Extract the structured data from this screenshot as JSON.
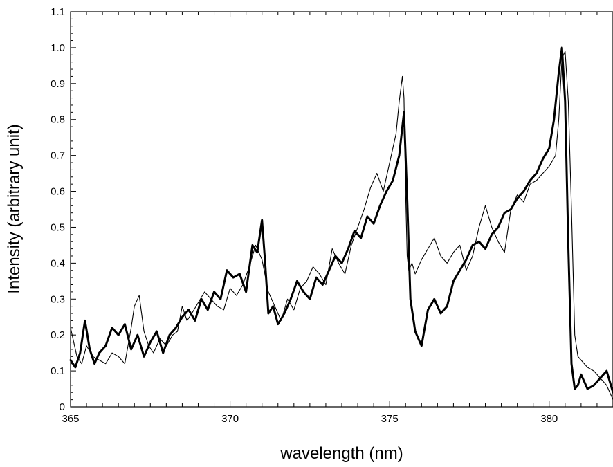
{
  "chart_data": {
    "type": "line",
    "title": "",
    "xlabel": "wavelength (nm)",
    "ylabel": "Intensity (arbitrary unit)",
    "xlim": [
      365,
      382
    ],
    "ylim": [
      0,
      1.1
    ],
    "x_ticks": [
      365,
      370,
      375,
      380
    ],
    "x_tick_labels": [
      "365",
      "370",
      "375",
      "380"
    ],
    "y_ticks": [
      0,
      0.1,
      0.2,
      0.3,
      0.4,
      0.5,
      0.6,
      0.7,
      0.8,
      0.9,
      1.0,
      1.1
    ],
    "y_tick_labels": [
      "0",
      "0.1",
      "0.2",
      "0.3",
      "0.4",
      "0.5",
      "0.6",
      "0.7",
      "0.8",
      "0.9",
      "1.0",
      "1.1"
    ],
    "grid": false,
    "legend": "none",
    "series": [
      {
        "style": "thin",
        "color": "#000000",
        "x": [
          365.0,
          365.1,
          365.2,
          365.35,
          365.5,
          365.7,
          365.9,
          366.1,
          366.3,
          366.5,
          366.7,
          366.9,
          367.0,
          367.15,
          367.3,
          367.45,
          367.6,
          367.8,
          368.0,
          368.2,
          368.35,
          368.5,
          368.65,
          368.8,
          369.0,
          369.2,
          369.4,
          369.6,
          369.8,
          370.0,
          370.2,
          370.4,
          370.6,
          370.8,
          371.0,
          371.2,
          371.4,
          371.6,
          371.8,
          372.0,
          372.2,
          372.4,
          372.6,
          372.8,
          373.0,
          373.2,
          373.4,
          373.6,
          373.8,
          374.0,
          374.2,
          374.4,
          374.6,
          374.8,
          375.0,
          375.2,
          375.3,
          375.4,
          375.45,
          375.5,
          375.55,
          375.6,
          375.7,
          375.8,
          376.0,
          376.2,
          376.4,
          376.6,
          376.8,
          377.0,
          377.2,
          377.4,
          377.6,
          377.8,
          378.0,
          378.2,
          378.4,
          378.6,
          378.8,
          379.0,
          379.2,
          379.4,
          379.6,
          379.8,
          380.0,
          380.2,
          380.3,
          380.4,
          380.5,
          380.6,
          380.7,
          380.8,
          380.9,
          381.0,
          381.2,
          381.4,
          381.6,
          381.8,
          382.0
        ],
        "y": [
          0.22,
          0.18,
          0.14,
          0.12,
          0.17,
          0.14,
          0.13,
          0.12,
          0.15,
          0.14,
          0.12,
          0.22,
          0.28,
          0.31,
          0.21,
          0.17,
          0.15,
          0.19,
          0.17,
          0.2,
          0.21,
          0.28,
          0.24,
          0.26,
          0.29,
          0.32,
          0.3,
          0.28,
          0.27,
          0.33,
          0.31,
          0.34,
          0.39,
          0.45,
          0.41,
          0.32,
          0.28,
          0.24,
          0.3,
          0.27,
          0.33,
          0.35,
          0.39,
          0.37,
          0.34,
          0.44,
          0.4,
          0.37,
          0.45,
          0.5,
          0.55,
          0.61,
          0.65,
          0.6,
          0.68,
          0.76,
          0.85,
          0.92,
          0.86,
          0.6,
          0.42,
          0.38,
          0.4,
          0.37,
          0.41,
          0.44,
          0.47,
          0.42,
          0.4,
          0.43,
          0.45,
          0.38,
          0.42,
          0.5,
          0.56,
          0.5,
          0.46,
          0.43,
          0.55,
          0.59,
          0.57,
          0.62,
          0.63,
          0.65,
          0.67,
          0.7,
          0.8,
          0.97,
          0.99,
          0.85,
          0.55,
          0.2,
          0.14,
          0.13,
          0.11,
          0.1,
          0.08,
          0.06,
          0.02
        ]
      },
      {
        "style": "thick",
        "color": "#000000",
        "x": [
          365.0,
          365.15,
          365.3,
          365.45,
          365.6,
          365.75,
          365.9,
          366.1,
          366.3,
          366.5,
          366.7,
          366.9,
          367.1,
          367.3,
          367.5,
          367.7,
          367.9,
          368.1,
          368.3,
          368.5,
          368.7,
          368.9,
          369.1,
          369.3,
          369.5,
          369.7,
          369.9,
          370.1,
          370.3,
          370.5,
          370.7,
          370.85,
          371.0,
          371.1,
          371.2,
          371.35,
          371.5,
          371.7,
          371.9,
          372.1,
          372.3,
          372.5,
          372.7,
          372.9,
          373.1,
          373.3,
          373.5,
          373.7,
          373.9,
          374.1,
          374.3,
          374.5,
          374.7,
          374.9,
          375.1,
          375.3,
          375.45,
          375.55,
          375.65,
          375.8,
          376.0,
          376.2,
          376.4,
          376.6,
          376.8,
          377.0,
          377.2,
          377.4,
          377.6,
          377.8,
          378.0,
          378.2,
          378.4,
          378.6,
          378.8,
          379.0,
          379.2,
          379.4,
          379.6,
          379.8,
          380.0,
          380.15,
          380.3,
          380.4,
          380.5,
          380.6,
          380.7,
          380.8,
          380.9,
          381.0,
          381.2,
          381.4,
          381.6,
          381.8,
          382.0
        ],
        "y": [
          0.13,
          0.11,
          0.15,
          0.24,
          0.16,
          0.12,
          0.15,
          0.17,
          0.22,
          0.2,
          0.23,
          0.16,
          0.2,
          0.14,
          0.18,
          0.21,
          0.15,
          0.2,
          0.22,
          0.25,
          0.27,
          0.24,
          0.3,
          0.27,
          0.32,
          0.3,
          0.38,
          0.36,
          0.37,
          0.32,
          0.45,
          0.43,
          0.52,
          0.4,
          0.26,
          0.28,
          0.23,
          0.26,
          0.3,
          0.35,
          0.32,
          0.3,
          0.36,
          0.34,
          0.38,
          0.42,
          0.4,
          0.44,
          0.49,
          0.47,
          0.53,
          0.51,
          0.56,
          0.6,
          0.63,
          0.7,
          0.82,
          0.58,
          0.3,
          0.21,
          0.17,
          0.27,
          0.3,
          0.26,
          0.28,
          0.35,
          0.38,
          0.41,
          0.45,
          0.46,
          0.44,
          0.48,
          0.5,
          0.54,
          0.55,
          0.58,
          0.6,
          0.63,
          0.65,
          0.69,
          0.72,
          0.8,
          0.93,
          1.0,
          0.85,
          0.45,
          0.12,
          0.05,
          0.06,
          0.09,
          0.05,
          0.06,
          0.08,
          0.1,
          0.04
        ]
      }
    ]
  }
}
